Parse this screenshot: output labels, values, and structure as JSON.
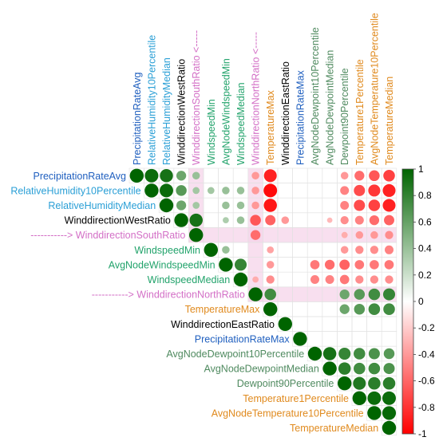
{
  "chart_data": {
    "type": "heatmap",
    "title": "",
    "variables": [
      {
        "name": "PrecipitationRateAvg",
        "color": "#1f5fbf",
        "arrow": false
      },
      {
        "name": "RelativeHumidity10Percentile",
        "color": "#2a9fd6",
        "arrow": false
      },
      {
        "name": "RelativeHumidityMedian",
        "color": "#2a9fd6",
        "arrow": false
      },
      {
        "name": "WinddirectionWestRatio",
        "color": "#000000",
        "arrow": false
      },
      {
        "name": "WinddirectionSouthRatio",
        "color": "#d36fc6",
        "arrow": true
      },
      {
        "name": "WindspeedMin",
        "color": "#22a36b",
        "arrow": false
      },
      {
        "name": "AvgNodeWindspeedMin",
        "color": "#22a36b",
        "arrow": false
      },
      {
        "name": "WindspeedMedian",
        "color": "#22a36b",
        "arrow": false
      },
      {
        "name": "WinddirectionNorthRatio",
        "color": "#d36fc6",
        "arrow": true
      },
      {
        "name": "TemperatureMax",
        "color": "#e08a1e",
        "arrow": false
      },
      {
        "name": "WinddirectionEastRatio",
        "color": "#000000",
        "arrow": false
      },
      {
        "name": "PrecipitationRateMax",
        "color": "#1f5fbf",
        "arrow": false
      },
      {
        "name": "AvgNodeDewpoint10Percentile",
        "color": "#4f8a5f",
        "arrow": false
      },
      {
        "name": "AvgNodeDewpointMedian",
        "color": "#4f8a5f",
        "arrow": false
      },
      {
        "name": "Dewpoint90Percentile",
        "color": "#4f8a5f",
        "arrow": false
      },
      {
        "name": "Temperature1Percentile",
        "color": "#e08a1e",
        "arrow": false
      },
      {
        "name": "AvgNodeTemperature10Percentile",
        "color": "#e08a1e",
        "arrow": false
      },
      {
        "name": "TemperatureMedian",
        "color": "#e08a1e",
        "arrow": false
      }
    ],
    "arrow_text": "----------->",
    "arrow_text_rotated": "<-----",
    "correlations": [
      [
        0,
        1,
        0.95
      ],
      [
        0,
        2,
        0.9
      ],
      [
        0,
        3,
        0.5
      ],
      [
        0,
        4,
        0.3
      ],
      [
        0,
        8,
        -0.3
      ],
      [
        0,
        9,
        -0.85
      ],
      [
        0,
        14,
        -0.3
      ],
      [
        0,
        15,
        -0.5
      ],
      [
        0,
        16,
        -0.6
      ],
      [
        0,
        17,
        -0.7
      ],
      [
        1,
        2,
        0.95
      ],
      [
        1,
        3,
        0.6
      ],
      [
        1,
        4,
        0.25
      ],
      [
        1,
        5,
        0.25
      ],
      [
        1,
        6,
        0.3
      ],
      [
        1,
        7,
        0.3
      ],
      [
        1,
        8,
        -0.3
      ],
      [
        1,
        9,
        -0.95
      ],
      [
        1,
        14,
        -0.4
      ],
      [
        1,
        15,
        -0.65
      ],
      [
        1,
        16,
        -0.75
      ],
      [
        1,
        17,
        -0.85
      ],
      [
        2,
        3,
        0.5
      ],
      [
        2,
        4,
        0.25
      ],
      [
        2,
        6,
        0.3
      ],
      [
        2,
        7,
        0.3
      ],
      [
        2,
        8,
        -0.3
      ],
      [
        2,
        9,
        -0.9
      ],
      [
        2,
        14,
        -0.4
      ],
      [
        2,
        15,
        -0.65
      ],
      [
        2,
        16,
        -0.7
      ],
      [
        2,
        17,
        -0.85
      ],
      [
        3,
        4,
        0.9
      ],
      [
        3,
        6,
        0.2
      ],
      [
        3,
        7,
        0.3
      ],
      [
        3,
        8,
        -0.6
      ],
      [
        3,
        9,
        -0.55
      ],
      [
        3,
        10,
        -0.3
      ],
      [
        3,
        13,
        -0.15
      ],
      [
        3,
        14,
        -0.35
      ],
      [
        3,
        15,
        -0.4
      ],
      [
        3,
        16,
        -0.5
      ],
      [
        3,
        17,
        -0.55
      ],
      [
        4,
        8,
        -0.5
      ],
      [
        4,
        14,
        -0.2
      ],
      [
        4,
        15,
        -0.3
      ],
      [
        4,
        16,
        -0.3
      ],
      [
        4,
        17,
        -0.35
      ],
      [
        5,
        6,
        0.3
      ],
      [
        5,
        9,
        -0.25
      ],
      [
        5,
        14,
        -0.3
      ],
      [
        5,
        15,
        -0.35
      ],
      [
        5,
        16,
        -0.35
      ],
      [
        5,
        17,
        -0.4
      ],
      [
        6,
        7,
        0.75
      ],
      [
        6,
        9,
        -0.3
      ],
      [
        6,
        12,
        -0.45
      ],
      [
        6,
        13,
        -0.5
      ],
      [
        6,
        14,
        -0.55
      ],
      [
        6,
        15,
        -0.45
      ],
      [
        6,
        16,
        -0.45
      ],
      [
        6,
        17,
        -0.45
      ],
      [
        7,
        8,
        -0.2
      ],
      [
        7,
        9,
        -0.35
      ],
      [
        7,
        12,
        -0.4
      ],
      [
        7,
        13,
        -0.4
      ],
      [
        7,
        14,
        -0.45
      ],
      [
        7,
        15,
        -0.35
      ],
      [
        7,
        16,
        -0.35
      ],
      [
        7,
        17,
        -0.35
      ],
      [
        8,
        9,
        0.7
      ],
      [
        8,
        14,
        0.5
      ],
      [
        8,
        15,
        0.6
      ],
      [
        8,
        16,
        0.7
      ],
      [
        8,
        17,
        0.75
      ],
      [
        9,
        14,
        0.5
      ],
      [
        9,
        15,
        0.6
      ],
      [
        9,
        16,
        0.7
      ],
      [
        9,
        17,
        0.7
      ],
      [
        12,
        13,
        0.9
      ],
      [
        12,
        14,
        0.75
      ],
      [
        12,
        15,
        0.7
      ],
      [
        12,
        16,
        0.65
      ],
      [
        12,
        17,
        0.6
      ],
      [
        13,
        14,
        0.8
      ],
      [
        13,
        15,
        0.7
      ],
      [
        13,
        16,
        0.7
      ],
      [
        13,
        17,
        0.65
      ],
      [
        14,
        15,
        0.85
      ],
      [
        14,
        16,
        0.8
      ],
      [
        14,
        17,
        0.8
      ],
      [
        15,
        16,
        0.95
      ],
      [
        15,
        17,
        0.95
      ],
      [
        16,
        17,
        0.97
      ]
    ],
    "colorbar": {
      "ticks": [
        "1",
        "0.8",
        "0.6",
        "0.4",
        "0.2",
        "0",
        "-0.2",
        "-0.4",
        "-0.6",
        "-0.8",
        "-1"
      ],
      "positive_color": "#006400",
      "negative_color": "#ff0000",
      "range": [
        -1,
        1
      ]
    },
    "highlight_color": "#f6d4ea",
    "xlabel": "",
    "ylabel": ""
  }
}
